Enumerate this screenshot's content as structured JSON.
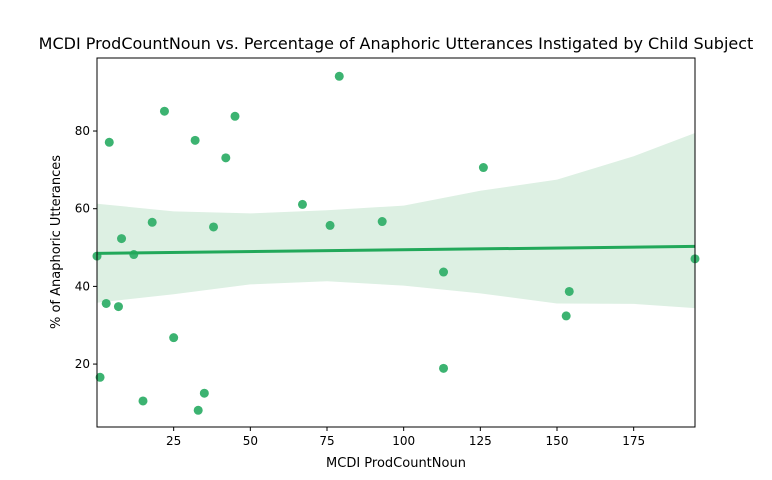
{
  "chart_data": {
    "type": "scatter",
    "title": "MCDI ProdCountNoun vs. Percentage of Anaphoric Utterances Instigated by Child Subject",
    "xlabel": "MCDI ProdCountNoun",
    "ylabel": "% of Anaphoric Utterances",
    "xlim": [
      0,
      195
    ],
    "ylim": [
      3.8,
      98.8
    ],
    "xticks": [
      25,
      50,
      75,
      100,
      125,
      150,
      175
    ],
    "yticks": [
      20,
      40,
      60,
      80
    ],
    "grid": false,
    "colors": {
      "point": "#3cb371",
      "line": "#22a85a",
      "band": "#ddf0e3"
    },
    "points": [
      {
        "x": 0,
        "y": 47.8
      },
      {
        "x": 1,
        "y": 16.6
      },
      {
        "x": 3,
        "y": 35.6
      },
      {
        "x": 4,
        "y": 77.1
      },
      {
        "x": 7,
        "y": 34.8
      },
      {
        "x": 8,
        "y": 52.3
      },
      {
        "x": 12,
        "y": 48.2
      },
      {
        "x": 15,
        "y": 10.5
      },
      {
        "x": 18,
        "y": 56.5
      },
      {
        "x": 22,
        "y": 85.1
      },
      {
        "x": 25,
        "y": 26.8
      },
      {
        "x": 32,
        "y": 77.6
      },
      {
        "x": 33,
        "y": 8.1
      },
      {
        "x": 35,
        "y": 12.5
      },
      {
        "x": 38,
        "y": 55.3
      },
      {
        "x": 42,
        "y": 73.1
      },
      {
        "x": 45,
        "y": 83.8
      },
      {
        "x": 67,
        "y": 61.1
      },
      {
        "x": 76,
        "y": 55.7
      },
      {
        "x": 79,
        "y": 94.1
      },
      {
        "x": 93,
        "y": 56.7
      },
      {
        "x": 113,
        "y": 43.7
      },
      {
        "x": 113,
        "y": 18.9
      },
      {
        "x": 126,
        "y": 70.6
      },
      {
        "x": 153,
        "y": 32.4
      },
      {
        "x": 154,
        "y": 38.7
      },
      {
        "x": 195,
        "y": 47.1
      }
    ],
    "regression": {
      "line": [
        [
          0,
          48.5
        ],
        [
          195,
          50.3
        ]
      ],
      "ci_upper": [
        [
          0,
          61.3
        ],
        [
          25,
          59.3
        ],
        [
          50,
          58.8
        ],
        [
          75,
          59.6
        ],
        [
          100,
          60.8
        ],
        [
          125,
          64.6
        ],
        [
          150,
          67.5
        ],
        [
          175,
          73.5
        ],
        [
          195,
          79.5
        ]
      ],
      "ci_lower": [
        [
          0,
          35.8
        ],
        [
          25,
          38.0
        ],
        [
          50,
          40.5
        ],
        [
          75,
          41.3
        ],
        [
          100,
          40.2
        ],
        [
          125,
          38.2
        ],
        [
          150,
          35.6
        ],
        [
          175,
          35.5
        ],
        [
          195,
          34.4
        ]
      ]
    }
  }
}
